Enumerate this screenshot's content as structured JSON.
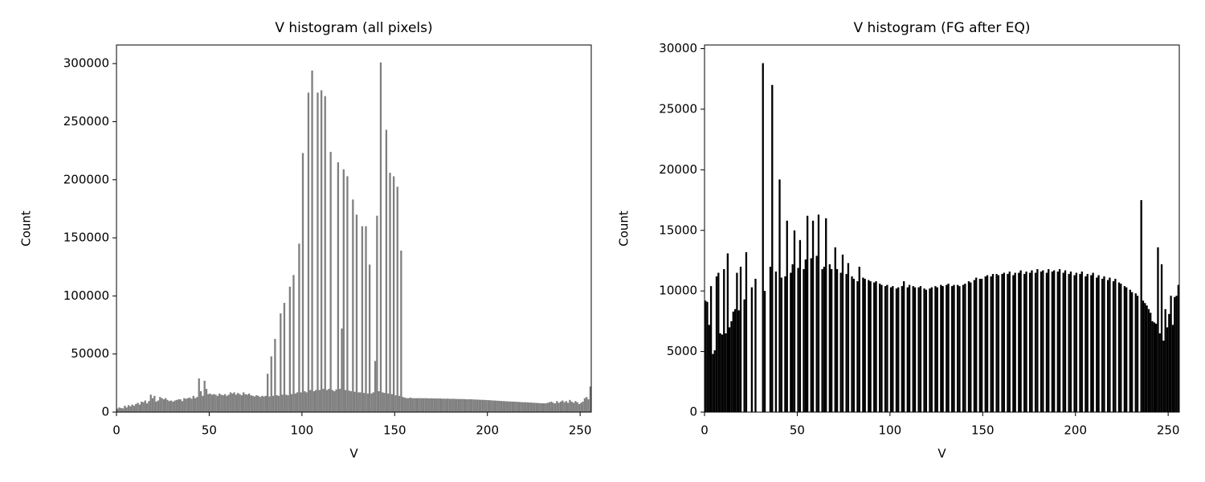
{
  "chart_data": [
    {
      "type": "histogram",
      "title": "V histogram (all pixels)",
      "x_label": "V",
      "y_label": "Count",
      "color": "#808080",
      "xlim": [
        0,
        256
      ],
      "ylim": [
        0,
        316000
      ],
      "xticks": [
        0,
        50,
        100,
        150,
        200,
        250
      ],
      "yticks": [
        0,
        50000,
        100000,
        150000,
        200000,
        250000,
        300000
      ],
      "bins": [
        0,
        1,
        2,
        3,
        4,
        5,
        6,
        7,
        8,
        9,
        10,
        11,
        12,
        13,
        14,
        15,
        16,
        17,
        18,
        19,
        20,
        21,
        22,
        23,
        24,
        25,
        26,
        27,
        28,
        29,
        30,
        31,
        32,
        33,
        34,
        35,
        36,
        37,
        38,
        39,
        40,
        41,
        42,
        43,
        44,
        45,
        46,
        47,
        48,
        49,
        50,
        51,
        52,
        53,
        54,
        55,
        56,
        57,
        58,
        59,
        60,
        61,
        62,
        63,
        64,
        65,
        66,
        67,
        68,
        69,
        70,
        71,
        72,
        73,
        74,
        75,
        76,
        77,
        78,
        79,
        80,
        81,
        82,
        83,
        84,
        85,
        86,
        87,
        88,
        89,
        90,
        91,
        92,
        93,
        94,
        95,
        96,
        97,
        98,
        99,
        100,
        101,
        102,
        103,
        104,
        105,
        106,
        107,
        108,
        109,
        110,
        111,
        112,
        113,
        114,
        115,
        116,
        117,
        118,
        119,
        120,
        121,
        122,
        123,
        124,
        125,
        126,
        127,
        128,
        129,
        130,
        131,
        132,
        133,
        134,
        135,
        136,
        137,
        138,
        139,
        140,
        141,
        142,
        143,
        144,
        145,
        146,
        147,
        148,
        149,
        150,
        151,
        152,
        153,
        154,
        155,
        156,
        157,
        158,
        159,
        160,
        161,
        162,
        163,
        164,
        165,
        166,
        167,
        168,
        169,
        170,
        171,
        172,
        173,
        174,
        175,
        176,
        177,
        178,
        179,
        180,
        181,
        182,
        183,
        184,
        185,
        186,
        187,
        188,
        189,
        190,
        191,
        192,
        193,
        194,
        195,
        196,
        197,
        198,
        199,
        200,
        201,
        202,
        203,
        204,
        205,
        206,
        207,
        208,
        209,
        210,
        211,
        212,
        213,
        214,
        215,
        216,
        217,
        218,
        219,
        220,
        221,
        222,
        223,
        224,
        225,
        226,
        227,
        228,
        229,
        230,
        231,
        232,
        233,
        234,
        235,
        236,
        237,
        238,
        239,
        240,
        241,
        242,
        243,
        244,
        245,
        246,
        247,
        248,
        249,
        250,
        251,
        252,
        253,
        254,
        255,
        256
      ],
      "values": [
        3000,
        4000,
        3500,
        3200,
        5500,
        4000,
        6000,
        5000,
        6500,
        5500,
        7000,
        8000,
        6500,
        9000,
        8500,
        10000,
        7500,
        9500,
        15000,
        12000,
        14000,
        9000,
        10000,
        13000,
        12000,
        11000,
        12000,
        10500,
        9500,
        10000,
        9000,
        10000,
        10500,
        11000,
        11000,
        9500,
        12000,
        11500,
        12000,
        12500,
        11500,
        14000,
        12000,
        13000,
        29000,
        18000,
        14000,
        27000,
        20000,
        15500,
        16000,
        15000,
        15500,
        15000,
        14000,
        16000,
        15000,
        14500,
        15500,
        14000,
        15000,
        17000,
        16000,
        17000,
        15000,
        16500,
        15500,
        14500,
        17000,
        15500,
        15000,
        16000,
        14500,
        14000,
        13500,
        14500,
        14000,
        13000,
        14000,
        13500,
        14000,
        33000,
        13500,
        48000,
        14000,
        63000,
        14500,
        14000,
        85000,
        15000,
        94000,
        15000,
        14500,
        108000,
        15500,
        118000,
        16000,
        17000,
        145000,
        17000,
        223000,
        18000,
        17000,
        275000,
        19000,
        294000,
        18000,
        19000,
        275000,
        19000,
        277000,
        20000,
        272000,
        19000,
        20000,
        224000,
        19000,
        18000,
        19500,
        215000,
        20000,
        72000,
        209000,
        19000,
        203000,
        18500,
        18000,
        183000,
        17500,
        170000,
        17000,
        17000,
        160000,
        16500,
        160000,
        16000,
        127000,
        16000,
        17000,
        44000,
        169000,
        18000,
        301000,
        17000,
        16500,
        243000,
        16000,
        206000,
        15500,
        203000,
        14500,
        194000,
        14000,
        139000,
        13000,
        12500,
        12000,
        12000,
        12500,
        12000,
        12000,
        12000,
        12000,
        12000,
        12000,
        11900,
        12000,
        11900,
        11800,
        11900,
        11800,
        11800,
        11700,
        11800,
        11700,
        11600,
        11600,
        11500,
        11600,
        11500,
        11400,
        11500,
        11400,
        11300,
        11300,
        11200,
        11300,
        11200,
        11100,
        11000,
        11100,
        11000,
        10900,
        10800,
        10800,
        10700,
        10600,
        10600,
        10500,
        10400,
        10300,
        10200,
        10100,
        10000,
        9900,
        9800,
        9700,
        9600,
        9500,
        9400,
        9300,
        9200,
        9100,
        9000,
        9000,
        8900,
        8800,
        8700,
        8600,
        8500,
        8500,
        8400,
        8300,
        8200,
        8100,
        8000,
        7900,
        7800,
        7700,
        7600,
        7600,
        7500,
        8000,
        8500,
        9000,
        8000,
        7500,
        9500,
        8000,
        9000,
        10000,
        8500,
        9500,
        8000,
        10500,
        9000,
        8000,
        9500,
        8500,
        7000,
        8000,
        9000,
        12000,
        13000,
        11000,
        22000
      ]
    },
    {
      "type": "histogram",
      "title": "V histogram (FG after EQ)",
      "x_label": "V",
      "y_label": "Count",
      "color": "#000000",
      "xlim": [
        0,
        256
      ],
      "ylim": [
        0,
        30300
      ],
      "xticks": [
        0,
        50,
        100,
        150,
        200,
        250
      ],
      "yticks": [
        0,
        5000,
        10000,
        15000,
        20000,
        25000,
        30000
      ],
      "bins": [
        0,
        1,
        2,
        3,
        4,
        5,
        6,
        7,
        8,
        9,
        10,
        11,
        12,
        13,
        14,
        15,
        16,
        17,
        18,
        19,
        20,
        21,
        22,
        23,
        24,
        25,
        26,
        27,
        28,
        29,
        30,
        31,
        32,
        33,
        34,
        35,
        36,
        37,
        38,
        39,
        40,
        41,
        42,
        43,
        44,
        45,
        46,
        47,
        48,
        49,
        50,
        51,
        52,
        53,
        54,
        55,
        56,
        57,
        58,
        59,
        60,
        61,
        62,
        63,
        64,
        65,
        66,
        67,
        68,
        69,
        70,
        71,
        72,
        73,
        74,
        75,
        76,
        77,
        78,
        79,
        80,
        81,
        82,
        83,
        84,
        85,
        86,
        87,
        88,
        89,
        90,
        91,
        92,
        93,
        94,
        95,
        96,
        97,
        98,
        99,
        100,
        101,
        102,
        103,
        104,
        105,
        106,
        107,
        108,
        109,
        110,
        111,
        112,
        113,
        114,
        115,
        116,
        117,
        118,
        119,
        120,
        121,
        122,
        123,
        124,
        125,
        126,
        127,
        128,
        129,
        130,
        131,
        132,
        133,
        134,
        135,
        136,
        137,
        138,
        139,
        140,
        141,
        142,
        143,
        144,
        145,
        146,
        147,
        148,
        149,
        150,
        151,
        152,
        153,
        154,
        155,
        156,
        157,
        158,
        159,
        160,
        161,
        162,
        163,
        164,
        165,
        166,
        167,
        168,
        169,
        170,
        171,
        172,
        173,
        174,
        175,
        176,
        177,
        178,
        179,
        180,
        181,
        182,
        183,
        184,
        185,
        186,
        187,
        188,
        189,
        190,
        191,
        192,
        193,
        194,
        195,
        196,
        197,
        198,
        199,
        200,
        201,
        202,
        203,
        204,
        205,
        206,
        207,
        208,
        209,
        210,
        211,
        212,
        213,
        214,
        215,
        216,
        217,
        218,
        219,
        220,
        221,
        222,
        223,
        224,
        225,
        226,
        227,
        228,
        229,
        230,
        231,
        232,
        233,
        234,
        235,
        236,
        237,
        238,
        239,
        240,
        241,
        242,
        243,
        244,
        245,
        246,
        247,
        248,
        249,
        250,
        251,
        252,
        253,
        254,
        255,
        256
      ],
      "values": [
        9200,
        9100,
        7200,
        10400,
        4800,
        5100,
        11200,
        11500,
        6500,
        6400,
        11800,
        6500,
        13100,
        7000,
        7500,
        8300,
        8500,
        11500,
        8400,
        12000,
        0,
        9300,
        13200,
        0,
        0,
        10300,
        0,
        11000,
        0,
        0,
        0,
        28800,
        10000,
        0,
        0,
        12000,
        27000,
        0,
        11600,
        0,
        19200,
        11100,
        0,
        11200,
        15800,
        0,
        11500,
        12200,
        15000,
        0,
        11900,
        14200,
        0,
        11800,
        12600,
        16200,
        0,
        12700,
        15800,
        0,
        12900,
        16300,
        0,
        11800,
        12000,
        16000,
        0,
        12200,
        11800,
        0,
        13600,
        11800,
        0,
        11500,
        13000,
        0,
        11400,
        12300,
        0,
        11200,
        11000,
        0,
        10800,
        12000,
        0,
        11100,
        11000,
        0,
        10900,
        10800,
        0,
        10700,
        10800,
        0,
        10600,
        10500,
        0,
        10400,
        10500,
        0,
        10300,
        10400,
        0,
        10200,
        10300,
        0,
        10400,
        10800,
        0,
        10300,
        10500,
        0,
        10400,
        10300,
        0,
        10300,
        10400,
        0,
        10200,
        10100,
        0,
        10200,
        10300,
        0,
        10400,
        10300,
        0,
        10500,
        10400,
        0,
        10500,
        10600,
        0,
        10400,
        10500,
        0,
        10500,
        10400,
        0,
        10500,
        10600,
        0,
        10800,
        10700,
        0,
        10900,
        11100,
        0,
        11000,
        11000,
        0,
        11200,
        11300,
        0,
        11200,
        11400,
        0,
        11400,
        11300,
        0,
        11400,
        11500,
        0,
        11400,
        11600,
        0,
        11300,
        11500,
        0,
        11500,
        11700,
        0,
        11400,
        11600,
        0,
        11500,
        11700,
        0,
        11500,
        11800,
        0,
        11600,
        11700,
        0,
        11500,
        11800,
        0,
        11600,
        11700,
        0,
        11600,
        11800,
        0,
        11500,
        11700,
        0,
        11400,
        11600,
        0,
        11300,
        11500,
        0,
        11400,
        11600,
        0,
        11200,
        11400,
        0,
        11300,
        11500,
        0,
        11100,
        11300,
        0,
        11000,
        11200,
        0,
        10900,
        11100,
        0,
        10800,
        11000,
        0,
        10700,
        10600,
        0,
        10400,
        10300,
        0,
        10100,
        9900,
        0,
        9800,
        9600,
        0,
        17500,
        9200,
        9000,
        8800,
        8500,
        8200,
        7500,
        7400,
        7300,
        13600,
        6500,
        12200,
        5900,
        8500,
        7000,
        8100,
        9600,
        7200,
        9500,
        9600,
        10500
      ]
    }
  ]
}
